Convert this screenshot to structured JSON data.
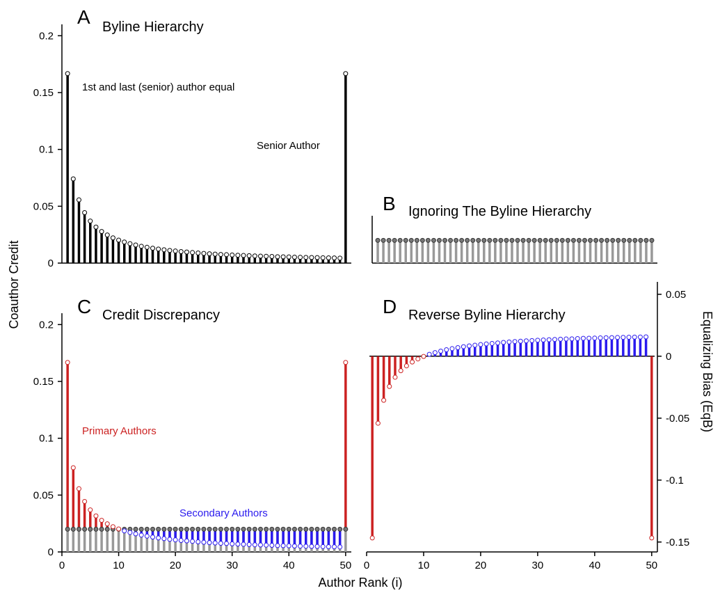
{
  "figure": {
    "shared_ylabel": "Coauthor Credit",
    "shared_xlabel": "Author Rank (i)",
    "right_ylabel": "Equalizing Bias (EqB)"
  },
  "chart_data": [
    {
      "panel": "A",
      "type": "bar",
      "title": "Byline Hierarchy",
      "style": "stem",
      "x": [
        1,
        2,
        3,
        4,
        5,
        6,
        7,
        8,
        9,
        10,
        11,
        12,
        13,
        14,
        15,
        16,
        17,
        18,
        19,
        20,
        21,
        22,
        23,
        24,
        25,
        26,
        27,
        28,
        29,
        30,
        31,
        32,
        33,
        34,
        35,
        36,
        37,
        38,
        39,
        40,
        41,
        42,
        43,
        44,
        45,
        46,
        47,
        48,
        49,
        50
      ],
      "series": [
        {
          "color": "#000000",
          "marker_fill": "#ffffff",
          "values": [
            0.1667,
            0.0741,
            0.0556,
            0.0444,
            0.037,
            0.0317,
            0.0278,
            0.0247,
            0.0222,
            0.0202,
            0.0185,
            0.0171,
            0.0159,
            0.0148,
            0.0139,
            0.0131,
            0.0123,
            0.0117,
            0.0111,
            0.0106,
            0.0101,
            0.0097,
            0.0093,
            0.0089,
            0.0085,
            0.0082,
            0.0079,
            0.0076,
            0.0074,
            0.0071,
            0.0069,
            0.0067,
            0.0065,
            0.0063,
            0.0061,
            0.006,
            0.0058,
            0.0056,
            0.0055,
            0.0054,
            0.0052,
            0.0051,
            0.005,
            0.0049,
            0.0048,
            0.0047,
            0.0046,
            0.0045,
            0.0044,
            0.1667
          ]
        }
      ],
      "annotations": [
        "1st and last (senior) author equal",
        "Senior Author"
      ],
      "xlim": [
        0,
        51
      ],
      "ylim": [
        0,
        0.21
      ],
      "yticks": [
        "0",
        "0.05",
        "0.1",
        "0.15",
        "0.2"
      ]
    },
    {
      "panel": "B",
      "type": "bar",
      "title": "Ignoring The Byline Hierarchy",
      "style": "stem",
      "x": [
        1,
        2,
        3,
        4,
        5,
        6,
        7,
        8,
        9,
        10,
        11,
        12,
        13,
        14,
        15,
        16,
        17,
        18,
        19,
        20,
        21,
        22,
        23,
        24,
        25,
        26,
        27,
        28,
        29,
        30,
        31,
        32,
        33,
        34,
        35,
        36,
        37,
        38,
        39,
        40,
        41,
        42,
        43,
        44,
        45,
        46,
        47,
        48,
        49,
        50
      ],
      "series": [
        {
          "color": "#999999",
          "marker_fill": "#777777",
          "constant_value": 0.02
        }
      ],
      "xlim": [
        0,
        51
      ],
      "ylim": [
        0,
        0.21
      ]
    },
    {
      "panel": "C",
      "type": "bar",
      "title": "Credit Discrepancy",
      "style": "stem",
      "x": [
        1,
        2,
        3,
        4,
        5,
        6,
        7,
        8,
        9,
        10,
        11,
        12,
        13,
        14,
        15,
        16,
        17,
        18,
        19,
        20,
        21,
        22,
        23,
        24,
        25,
        26,
        27,
        28,
        29,
        30,
        31,
        32,
        33,
        34,
        35,
        36,
        37,
        38,
        39,
        40,
        41,
        42,
        43,
        44,
        45,
        46,
        47,
        48,
        49,
        50
      ],
      "series": [
        {
          "color": "#999999",
          "marker_fill": "#777777",
          "constant_value": 0.02
        },
        {
          "color_above": "#cc2222",
          "color_below": "#2a1aee",
          "marker_fill": "#ffffff",
          "same_values_as_panel": "A"
        }
      ],
      "annotations": [
        "Primary Authors",
        "Secondary Authors"
      ],
      "xlim": [
        0,
        51
      ],
      "ylim": [
        0,
        0.21
      ],
      "xticks": [
        "0",
        "10",
        "20",
        "30",
        "40",
        "50"
      ],
      "yticks": [
        "0",
        "0.05",
        "0.1",
        "0.15",
        "0.2"
      ]
    },
    {
      "panel": "D",
      "type": "bar",
      "title": "Reverse Byline Hierarchy",
      "style": "stem",
      "x": [
        1,
        2,
        3,
        4,
        5,
        6,
        7,
        8,
        9,
        10,
        11,
        12,
        13,
        14,
        15,
        16,
        17,
        18,
        19,
        20,
        21,
        22,
        23,
        24,
        25,
        26,
        27,
        28,
        29,
        30,
        31,
        32,
        33,
        34,
        35,
        36,
        37,
        38,
        39,
        40,
        41,
        42,
        43,
        44,
        45,
        46,
        47,
        48,
        49,
        50
      ],
      "series": [
        {
          "color_negative": "#cc2222",
          "color_positive": "#2a1aee",
          "marker_fill": "#ffffff",
          "values": [
            -0.1467,
            -0.0541,
            -0.0356,
            -0.0244,
            -0.017,
            -0.0117,
            -0.0078,
            -0.0047,
            -0.0022,
            -0.0002,
            0.0015,
            0.0029,
            0.0041,
            0.0052,
            0.0061,
            0.0069,
            0.0077,
            0.0083,
            0.0089,
            0.0094,
            0.0099,
            0.0103,
            0.0107,
            0.0111,
            0.0115,
            0.0118,
            0.0121,
            0.0124,
            0.0126,
            0.0129,
            0.0131,
            0.0133,
            0.0135,
            0.0137,
            0.0139,
            0.014,
            0.0142,
            0.0144,
            0.0145,
            0.0146,
            0.0148,
            0.0149,
            0.015,
            0.0151,
            0.0152,
            0.0153,
            0.0154,
            0.0155,
            0.0156,
            -0.1467
          ]
        }
      ],
      "xlim": [
        0,
        51
      ],
      "ylim": [
        -0.158,
        0.06
      ],
      "xticks": [
        "0",
        "10",
        "20",
        "30",
        "40",
        "50"
      ],
      "yticks": [
        "0.05",
        "0",
        "-0.05",
        "-0.1",
        "-0.15"
      ],
      "yaxis_side": "right"
    }
  ]
}
